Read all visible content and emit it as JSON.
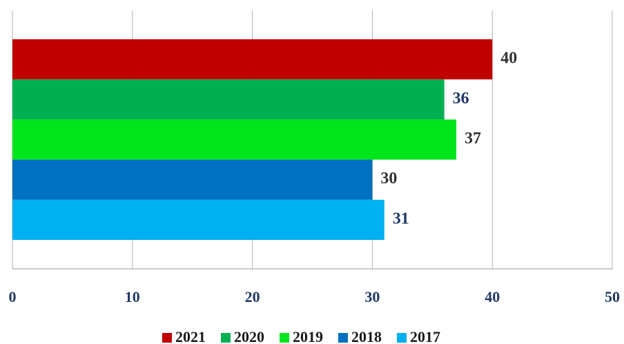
{
  "chart_data": {
    "type": "barh",
    "categories": [
      null
    ],
    "series": [
      {
        "name": "2021",
        "color": "#c00000",
        "label_color": "#333333",
        "values": [
          40
        ]
      },
      {
        "name": "2020",
        "color": "#00b050",
        "label_color": "#1f3864",
        "values": [
          36
        ]
      },
      {
        "name": "2019",
        "color": "#00e61c",
        "label_color": "#333333",
        "values": [
          37
        ]
      },
      {
        "name": "2018",
        "color": "#0070c0",
        "label_color": "#333333",
        "values": [
          30
        ]
      },
      {
        "name": "2017",
        "color": "#00b0f0",
        "label_color": "#1f3864",
        "values": [
          31
        ]
      }
    ],
    "xlim": [
      0,
      50
    ],
    "xticks": [
      0,
      10,
      20,
      30,
      40,
      50
    ],
    "grid": true,
    "legend": "bottom"
  }
}
